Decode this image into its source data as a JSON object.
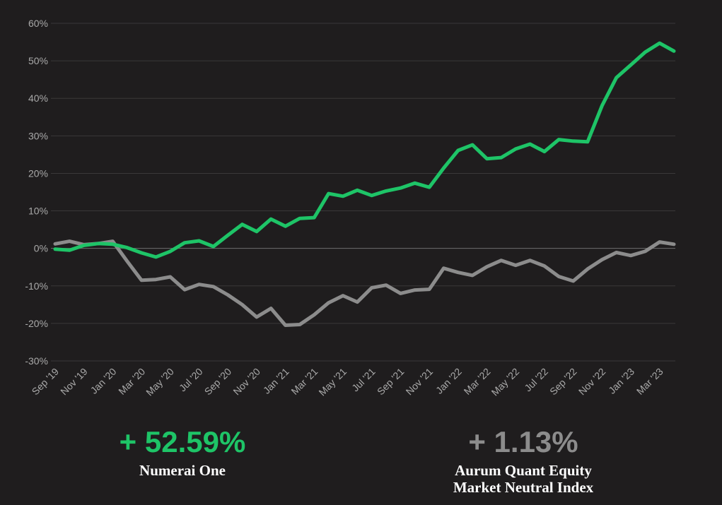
{
  "chart_data": {
    "type": "line",
    "categories": [
      "Sep '19",
      null,
      "Nov '19",
      null,
      "Jan '20",
      null,
      "Mar '20",
      null,
      "May '20",
      null,
      "Jul '20",
      null,
      "Sep '20",
      null,
      "Nov '20",
      null,
      "Jan '21",
      null,
      "Mar '21",
      null,
      "May '21",
      null,
      "Jul '21",
      null,
      "Sep '21",
      null,
      "Nov '21",
      null,
      "Jan '22",
      null,
      "Mar '22",
      null,
      "May '22",
      null,
      "Jul '22",
      null,
      "Sep '22",
      null,
      "Nov '22",
      null,
      "Jan '23",
      null,
      "Mar '23",
      null
    ],
    "series": [
      {
        "name": "Numerai One",
        "color": "#1ec467",
        "total_label": "+ 52.59%",
        "values": [
          -0.2,
          -0.5,
          0.8,
          1.3,
          1.1,
          0.2,
          -1.2,
          -2.3,
          -0.8,
          1.5,
          2.0,
          0.5,
          3.5,
          6.4,
          4.5,
          7.8,
          5.9,
          8.0,
          8.2,
          14.6,
          13.9,
          15.5,
          14.1,
          15.3,
          16.1,
          17.4,
          16.3,
          21.4,
          26.1,
          27.6,
          23.9,
          24.2,
          26.5,
          27.8,
          25.8,
          29.0,
          28.6,
          28.4,
          38.0,
          45.5,
          48.9,
          52.3,
          54.7,
          52.6
        ]
      },
      {
        "name": "Aurum Quant Equity Market Neutral Index",
        "color": "#8c8c8c",
        "total_label": "+ 1.13%",
        "values": [
          1.2,
          1.9,
          1.0,
          1.3,
          1.9,
          -3.4,
          -8.5,
          -8.3,
          -7.6,
          -11.0,
          -9.6,
          -10.2,
          -12.4,
          -15.0,
          -18.3,
          -16.0,
          -20.5,
          -20.3,
          -17.7,
          -14.5,
          -12.6,
          -14.3,
          -10.5,
          -9.8,
          -12.0,
          -11.1,
          -10.9,
          -5.3,
          -6.4,
          -7.2,
          -4.9,
          -3.2,
          -4.5,
          -3.2,
          -4.7,
          -7.5,
          -8.7,
          -5.5,
          -3.0,
          -1.1,
          -1.9,
          -0.8,
          1.7,
          1.1
        ]
      }
    ],
    "ylim": [
      -30,
      60
    ],
    "yticks": [
      {
        "value": -30,
        "label": "-30%"
      },
      {
        "value": -20,
        "label": "-20%"
      },
      {
        "value": -10,
        "label": "-10%"
      },
      {
        "value": 0,
        "label": "0%"
      },
      {
        "value": 10,
        "label": "10%"
      },
      {
        "value": 20,
        "label": "20%"
      },
      {
        "value": 30,
        "label": "30%"
      },
      {
        "value": 40,
        "label": "40%"
      },
      {
        "value": 50,
        "label": "50%"
      },
      {
        "value": 60,
        "label": "60%"
      }
    ],
    "grid": true
  }
}
